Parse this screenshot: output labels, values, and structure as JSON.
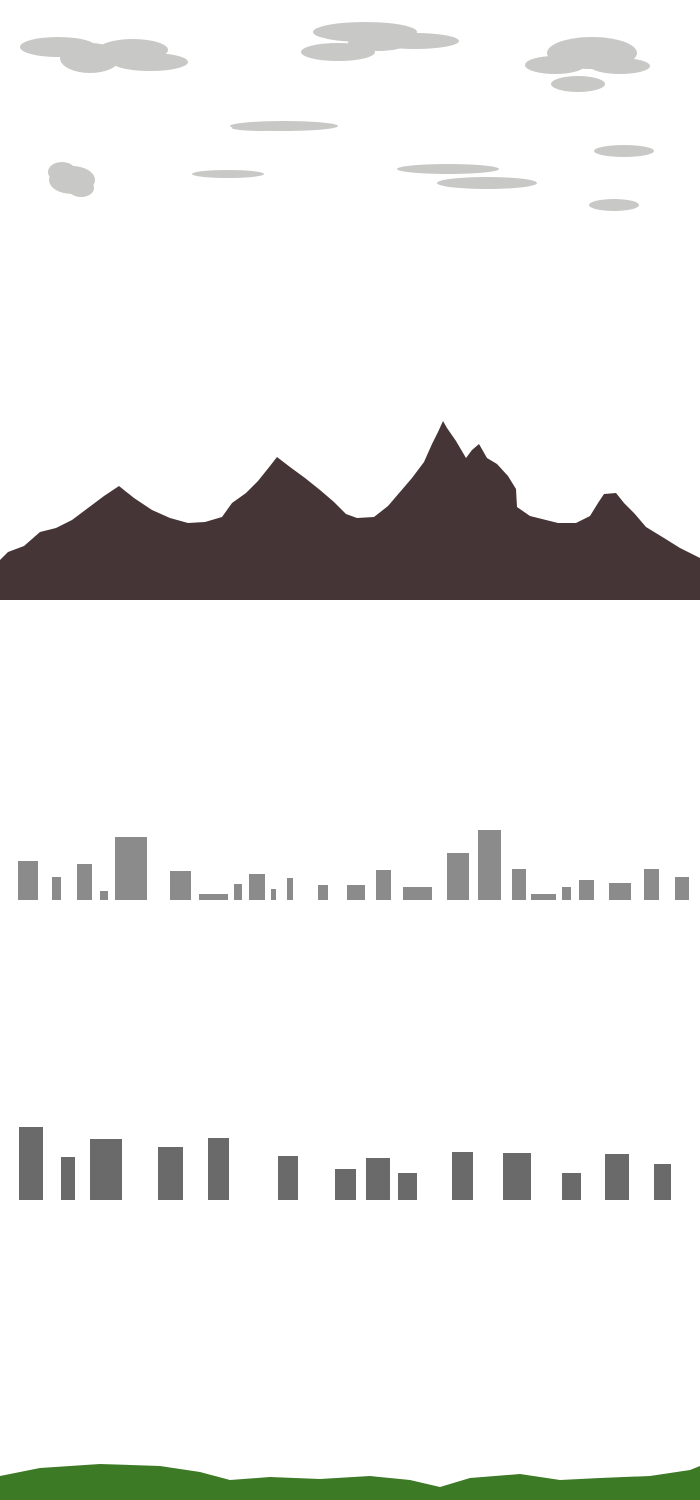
{
  "scene": {
    "background_color": "#ffffff",
    "cloud_color": "#c8c8c6",
    "mountain_color": "#463536",
    "far_building_color": "#8b8b8b",
    "near_building_color": "#6a6a6a",
    "grass_color": "#3d7a26"
  },
  "layers": [
    {
      "name": "clouds",
      "count": 10
    },
    {
      "name": "mountains",
      "count": 1
    },
    {
      "name": "far-buildings",
      "count": 28
    },
    {
      "name": "near-buildings",
      "count": 16
    },
    {
      "name": "grass",
      "count": 1
    }
  ]
}
